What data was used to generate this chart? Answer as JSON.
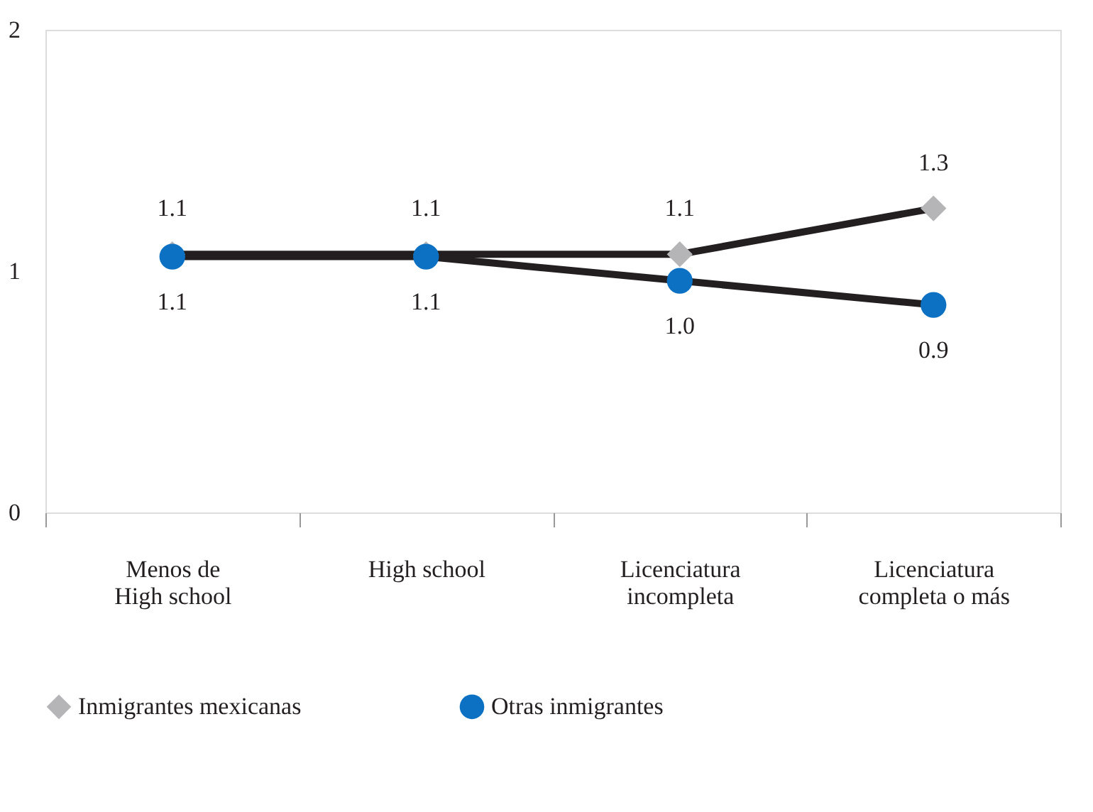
{
  "chart_data": {
    "type": "line",
    "categories": [
      "Menos de\nHigh school",
      "High school",
      "Licenciatura\nincompleta",
      "Licenciatura\ncompleta o más"
    ],
    "series": [
      {
        "name": "Inmigrantes mexicanas",
        "color": "#b5b5b8",
        "marker": "diamond",
        "values": [
          1.07,
          1.07,
          1.07,
          1.26
        ],
        "value_labels": [
          "1.1",
          "1.1",
          "1.1",
          "1.3"
        ]
      },
      {
        "name": "Otras inmigrantes",
        "color": "#0c71c3",
        "marker": "circle",
        "values": [
          1.06,
          1.06,
          0.96,
          0.86
        ],
        "value_labels": [
          "1.1",
          "1.1",
          "1.0",
          "0.9"
        ]
      }
    ],
    "ylim": [
      0,
      2
    ],
    "yticks": [
      0,
      1,
      2
    ],
    "grid": false,
    "legend": "bottom"
  }
}
